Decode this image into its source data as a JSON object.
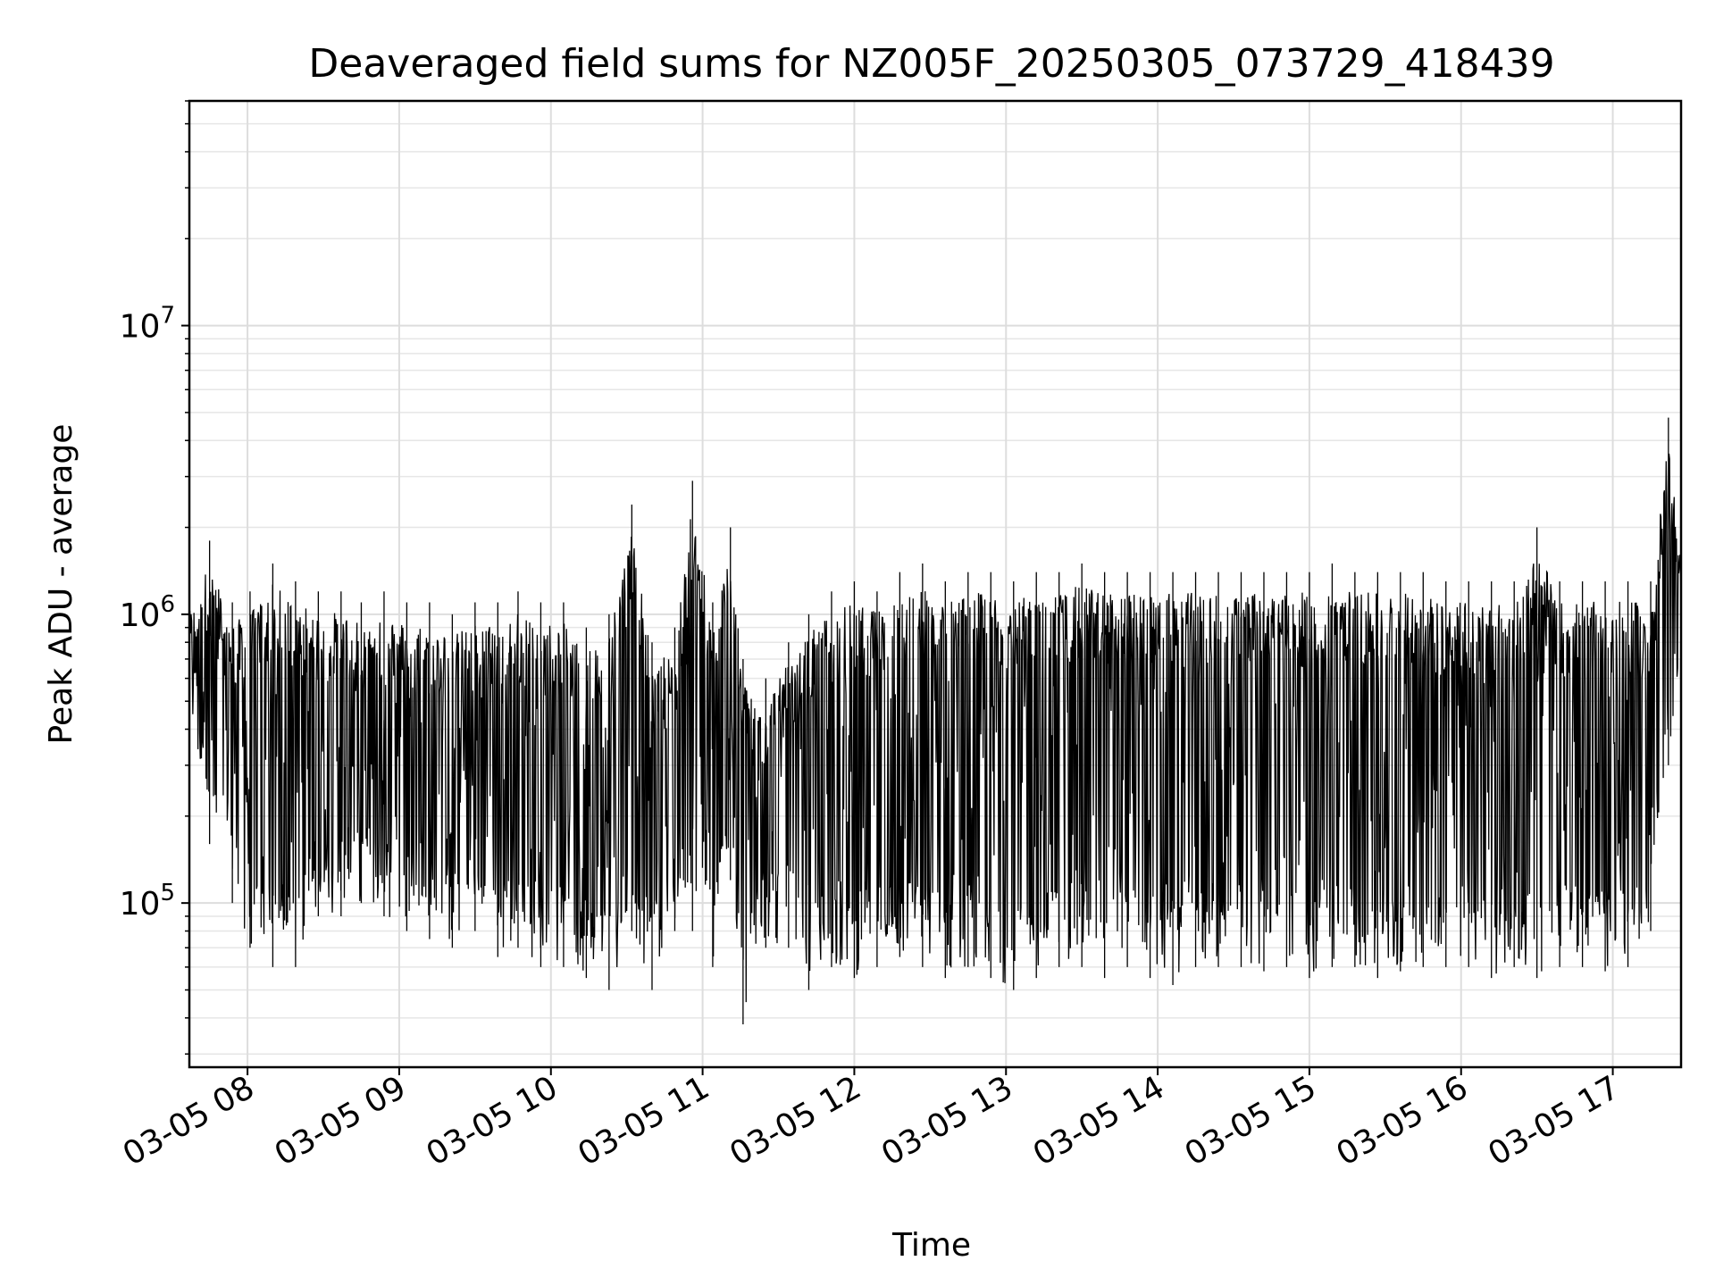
{
  "chart_data": {
    "type": "line",
    "title": "Deaveraged field sums for NZ005F_20250305_073729_418439",
    "xlabel": "Time",
    "ylabel": "Peak ADU - average",
    "yscale": "log",
    "ylim": [
      27000,
      60000000
    ],
    "xlim": [
      "2025-03-05 07:37",
      "2025-03-05 17:27"
    ],
    "grid": true,
    "legend": "none",
    "x_ticks": [
      {
        "value": "2025-03-05 08:00",
        "label": "03-05 08"
      },
      {
        "value": "2025-03-05 09:00",
        "label": "03-05 09"
      },
      {
        "value": "2025-03-05 10:00",
        "label": "03-05 10"
      },
      {
        "value": "2025-03-05 11:00",
        "label": "03-05 11"
      },
      {
        "value": "2025-03-05 12:00",
        "label": "03-05 12"
      },
      {
        "value": "2025-03-05 13:00",
        "label": "03-05 13"
      },
      {
        "value": "2025-03-05 14:00",
        "label": "03-05 14"
      },
      {
        "value": "2025-03-05 15:00",
        "label": "03-05 15"
      },
      {
        "value": "2025-03-05 16:00",
        "label": "03-05 16"
      },
      {
        "value": "2025-03-05 17:00",
        "label": "03-05 17"
      }
    ],
    "y_ticks": [
      {
        "value": 100000,
        "base": "10",
        "exp": "5"
      },
      {
        "value": 1000000,
        "base": "10",
        "exp": "6"
      },
      {
        "value": 10000000,
        "base": "10",
        "exp": "7"
      }
    ],
    "series": [
      {
        "color": "#000000",
        "x": [
          "2025-03-05 07:37",
          "2025-03-05 07:45",
          "2025-03-05 07:54",
          "2025-03-05 08:01",
          "2025-03-05 08:10",
          "2025-03-05 08:19",
          "2025-03-05 08:28",
          "2025-03-05 08:37",
          "2025-03-05 08:45",
          "2025-03-05 08:54",
          "2025-03-05 09:03",
          "2025-03-05 09:12",
          "2025-03-05 09:21",
          "2025-03-05 09:30",
          "2025-03-05 09:39",
          "2025-03-05 09:47",
          "2025-03-05 09:56",
          "2025-03-05 10:05",
          "2025-03-05 10:14",
          "2025-03-05 10:23",
          "2025-03-05 10:32",
          "2025-03-05 10:40",
          "2025-03-05 10:49",
          "2025-03-05 10:56",
          "2025-03-05 11:04",
          "2025-03-05 11:11",
          "2025-03-05 11:16",
          "2025-03-05 11:25",
          "2025-03-05 11:34",
          "2025-03-05 11:42",
          "2025-03-05 11:51",
          "2025-03-05 12:00",
          "2025-03-05 12:09",
          "2025-03-05 12:18",
          "2025-03-05 12:27",
          "2025-03-05 12:36",
          "2025-03-05 12:45",
          "2025-03-05 12:54",
          "2025-03-05 13:03",
          "2025-03-05 13:12",
          "2025-03-05 13:21",
          "2025-03-05 13:30",
          "2025-03-05 13:39",
          "2025-03-05 13:48",
          "2025-03-05 13:57",
          "2025-03-05 14:06",
          "2025-03-05 14:15",
          "2025-03-05 14:24",
          "2025-03-05 14:33",
          "2025-03-05 14:42",
          "2025-03-05 14:51",
          "2025-03-05 15:00",
          "2025-03-05 15:09",
          "2025-03-05 15:18",
          "2025-03-05 15:27",
          "2025-03-05 15:36",
          "2025-03-05 15:45",
          "2025-03-05 15:54",
          "2025-03-05 16:03",
          "2025-03-05 16:12",
          "2025-03-05 16:21",
          "2025-03-05 16:30",
          "2025-03-05 16:39",
          "2025-03-05 16:48",
          "2025-03-05 16:57",
          "2025-03-05 17:06",
          "2025-03-05 17:15",
          "2025-03-05 17:22",
          "2025-03-05 17:27"
        ],
        "upper": [
          1200000,
          1800000,
          1100000,
          1200000,
          1500000,
          1300000,
          1200000,
          1200000,
          1100000,
          1200000,
          1100000,
          1100000,
          1000000,
          1100000,
          1100000,
          1200000,
          1100000,
          1100000,
          900000,
          1000000,
          2400000,
          800000,
          900000,
          2900000,
          1100000,
          2000000,
          700000,
          600000,
          800000,
          1000000,
          1200000,
          1300000,
          1200000,
          1400000,
          1500000,
          1300000,
          1400000,
          1400000,
          1300000,
          1400000,
          1400000,
          1500000,
          1400000,
          1400000,
          1400000,
          1400000,
          1400000,
          1400000,
          1400000,
          1400000,
          1400000,
          1400000,
          1500000,
          1400000,
          1400000,
          1400000,
          1400000,
          1300000,
          1300000,
          1300000,
          1300000,
          2000000,
          1300000,
          1300000,
          1300000,
          1300000,
          1300000,
          4800000,
          1800000
        ],
        "lower": [
          450000,
          160000,
          100000,
          70000,
          60000,
          60000,
          90000,
          90000,
          100000,
          90000,
          80000,
          75000,
          70000,
          80000,
          65000,
          70000,
          60000,
          60000,
          55000,
          50000,
          80000,
          50000,
          80000,
          80000,
          60000,
          120000,
          38000,
          70000,
          70000,
          50000,
          60000,
          55000,
          60000,
          65000,
          60000,
          55000,
          60000,
          55000,
          50000,
          55000,
          60000,
          60000,
          55000,
          60000,
          55000,
          52000,
          60000,
          60000,
          60000,
          58000,
          60000,
          55000,
          60000,
          60000,
          55000,
          58000,
          60000,
          60000,
          60000,
          55000,
          60000,
          55000,
          60000,
          60000,
          58000,
          60000,
          80000,
          300000,
          800000
        ]
      }
    ]
  }
}
